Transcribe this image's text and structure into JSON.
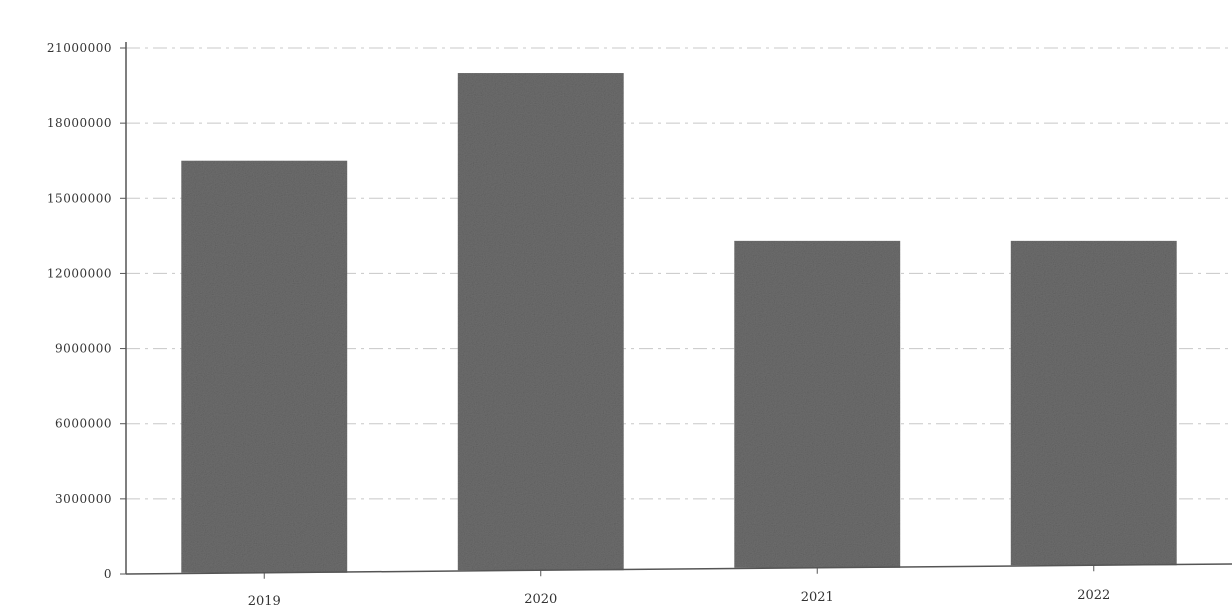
{
  "chart_data": {
    "type": "bar",
    "categories": [
      "2019",
      "2020",
      "2021",
      "2022"
    ],
    "values": [
      16500000,
      20000000,
      13300000,
      13300000
    ],
    "title": "",
    "xlabel": "",
    "ylabel": "",
    "ylim": [
      0,
      21000000
    ],
    "y_ticks": [
      {
        "value": 0,
        "label": "0"
      },
      {
        "value": 3000000,
        "label": "3000000"
      },
      {
        "value": 6000000,
        "label": "6000000"
      },
      {
        "value": 9000000,
        "label": "9000000"
      },
      {
        "value": 12000000,
        "label": "12000000"
      },
      {
        "value": 15000000,
        "label": "15000000"
      },
      {
        "value": 18000000,
        "label": "18000000"
      },
      {
        "value": 21000000,
        "label": "21000000"
      }
    ],
    "grid": true,
    "legend": "none",
    "bar_color": "#6e6e6e",
    "grid_color": "#c8c8c8",
    "axis_color": "#555555"
  }
}
